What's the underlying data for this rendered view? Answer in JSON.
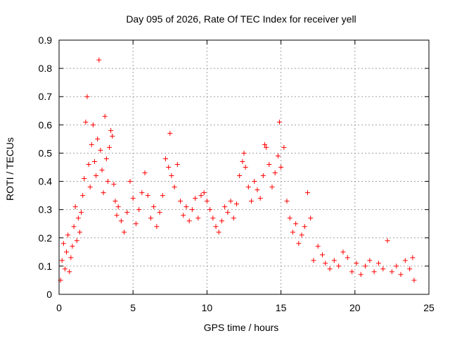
{
  "chart_data": {
    "type": "scatter",
    "title": "Day 095 of 2026, Rate Of TEC Index for receiver yell",
    "xlabel": "GPS time / hours",
    "ylabel": "ROTI / TECUs",
    "xlim": [
      0,
      25
    ],
    "ylim": [
      0,
      0.9
    ],
    "x_ticks": [
      0,
      5,
      10,
      15,
      20,
      25
    ],
    "x_tick_labels": [
      "0",
      "5",
      "10",
      "15",
      "20",
      "25"
    ],
    "y_ticks": [
      0,
      0.1,
      0.2,
      0.3,
      0.4,
      0.5,
      0.6,
      0.7,
      0.8,
      0.9
    ],
    "y_tick_labels": [
      "0",
      "0.1",
      "0.2",
      "0.3",
      "0.4",
      "0.5",
      "0.6",
      "0.7",
      "0.8",
      "0.9"
    ],
    "grid": true,
    "marker": "+",
    "color": "#ff0000",
    "series": [
      {
        "name": "ROTI",
        "points": [
          [
            0.1,
            0.05
          ],
          [
            0.2,
            0.12
          ],
          [
            0.3,
            0.18
          ],
          [
            0.4,
            0.09
          ],
          [
            0.5,
            0.15
          ],
          [
            0.6,
            0.21
          ],
          [
            0.7,
            0.08
          ],
          [
            0.8,
            0.13
          ],
          [
            0.9,
            0.17
          ],
          [
            1.0,
            0.24
          ],
          [
            1.1,
            0.31
          ],
          [
            1.2,
            0.19
          ],
          [
            1.3,
            0.27
          ],
          [
            1.4,
            0.22
          ],
          [
            1.5,
            0.29
          ],
          [
            1.6,
            0.35
          ],
          [
            1.7,
            0.41
          ],
          [
            1.8,
            0.61
          ],
          [
            1.9,
            0.7
          ],
          [
            2.0,
            0.46
          ],
          [
            2.1,
            0.38
          ],
          [
            2.2,
            0.53
          ],
          [
            2.3,
            0.6
          ],
          [
            2.4,
            0.47
          ],
          [
            2.5,
            0.42
          ],
          [
            2.6,
            0.55
          ],
          [
            2.7,
            0.83
          ],
          [
            2.8,
            0.51
          ],
          [
            2.9,
            0.44
          ],
          [
            3.0,
            0.36
          ],
          [
            3.1,
            0.63
          ],
          [
            3.2,
            0.48
          ],
          [
            3.3,
            0.4
          ],
          [
            3.4,
            0.52
          ],
          [
            3.5,
            0.58
          ],
          [
            3.6,
            0.56
          ],
          [
            3.7,
            0.39
          ],
          [
            3.8,
            0.33
          ],
          [
            3.9,
            0.28
          ],
          [
            4.0,
            0.31
          ],
          [
            4.2,
            0.26
          ],
          [
            4.4,
            0.22
          ],
          [
            4.6,
            0.29
          ],
          [
            4.8,
            0.4
          ],
          [
            5.0,
            0.34
          ],
          [
            5.2,
            0.25
          ],
          [
            5.4,
            0.3
          ],
          [
            5.6,
            0.36
          ],
          [
            5.8,
            0.43
          ],
          [
            6.0,
            0.35
          ],
          [
            6.2,
            0.27
          ],
          [
            6.4,
            0.31
          ],
          [
            6.6,
            0.24
          ],
          [
            6.8,
            0.29
          ],
          [
            7.0,
            0.35
          ],
          [
            7.2,
            0.48
          ],
          [
            7.4,
            0.45
          ],
          [
            7.5,
            0.57
          ],
          [
            7.6,
            0.42
          ],
          [
            7.8,
            0.38
          ],
          [
            8.0,
            0.46
          ],
          [
            8.2,
            0.33
          ],
          [
            8.4,
            0.28
          ],
          [
            8.6,
            0.31
          ],
          [
            8.8,
            0.26
          ],
          [
            9.0,
            0.3
          ],
          [
            9.2,
            0.34
          ],
          [
            9.4,
            0.27
          ],
          [
            9.6,
            0.35
          ],
          [
            9.8,
            0.36
          ],
          [
            10.0,
            0.33
          ],
          [
            10.2,
            0.3
          ],
          [
            10.4,
            0.27
          ],
          [
            10.6,
            0.24
          ],
          [
            10.8,
            0.22
          ],
          [
            11.0,
            0.26
          ],
          [
            11.2,
            0.31
          ],
          [
            11.4,
            0.29
          ],
          [
            11.6,
            0.33
          ],
          [
            11.8,
            0.27
          ],
          [
            12.0,
            0.32
          ],
          [
            12.2,
            0.42
          ],
          [
            12.4,
            0.47
          ],
          [
            12.5,
            0.5
          ],
          [
            12.6,
            0.45
          ],
          [
            12.8,
            0.38
          ],
          [
            13.0,
            0.33
          ],
          [
            13.2,
            0.4
          ],
          [
            13.4,
            0.37
          ],
          [
            13.6,
            0.34
          ],
          [
            13.8,
            0.42
          ],
          [
            13.9,
            0.53
          ],
          [
            14.0,
            0.52
          ],
          [
            14.2,
            0.46
          ],
          [
            14.4,
            0.38
          ],
          [
            14.6,
            0.43
          ],
          [
            14.8,
            0.49
          ],
          [
            14.9,
            0.61
          ],
          [
            15.0,
            0.45
          ],
          [
            15.2,
            0.52
          ],
          [
            15.4,
            0.33
          ],
          [
            15.6,
            0.27
          ],
          [
            15.8,
            0.22
          ],
          [
            16.0,
            0.25
          ],
          [
            16.2,
            0.18
          ],
          [
            16.4,
            0.21
          ],
          [
            16.6,
            0.24
          ],
          [
            16.8,
            0.36
          ],
          [
            17.0,
            0.27
          ],
          [
            17.2,
            0.12
          ],
          [
            17.5,
            0.17
          ],
          [
            17.8,
            0.14
          ],
          [
            18.0,
            0.11
          ],
          [
            18.3,
            0.09
          ],
          [
            18.6,
            0.12
          ],
          [
            18.9,
            0.1
          ],
          [
            19.2,
            0.15
          ],
          [
            19.5,
            0.13
          ],
          [
            19.8,
            0.08
          ],
          [
            20.1,
            0.11
          ],
          [
            20.4,
            0.07
          ],
          [
            20.7,
            0.1
          ],
          [
            21.0,
            0.12
          ],
          [
            21.3,
            0.08
          ],
          [
            21.6,
            0.11
          ],
          [
            21.9,
            0.09
          ],
          [
            22.2,
            0.19
          ],
          [
            22.5,
            0.08
          ],
          [
            22.8,
            0.1
          ],
          [
            23.1,
            0.07
          ],
          [
            23.4,
            0.12
          ],
          [
            23.7,
            0.09
          ],
          [
            23.9,
            0.13
          ],
          [
            24.0,
            0.05
          ]
        ]
      }
    ]
  }
}
